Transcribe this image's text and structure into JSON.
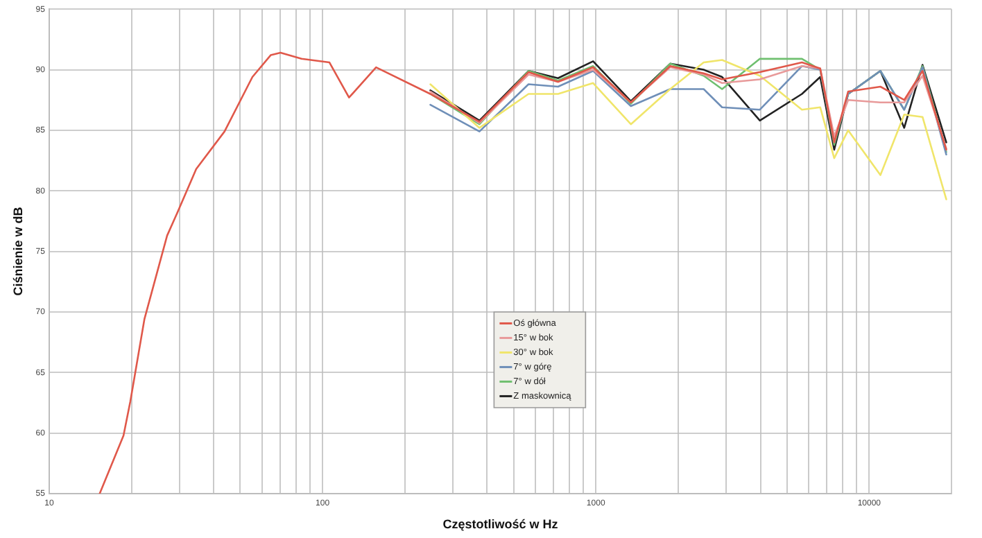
{
  "chart_data": {
    "type": "line",
    "xlabel": "Częstotliwość w Hz",
    "ylabel": "Ciśnienie w dB",
    "log": "x",
    "grid": true,
    "legend": "bottom",
    "marker": "none",
    "line_style": "solid",
    "xlim": [
      10,
      20000
    ],
    "xticks": [
      10,
      100,
      1000,
      10000
    ],
    "ylim": [
      55,
      95
    ],
    "yticks": [
      55,
      60,
      65,
      70,
      75,
      80,
      85,
      90,
      95
    ],
    "series": [
      {
        "name": "Oś główna",
        "color": "#e0584a",
        "x": [
          15.3,
          18.7,
          19.8,
          22.3,
          27,
          29.3,
          34.5,
          43.8,
          55.4,
          64.6,
          70.2,
          83.8,
          106,
          125,
          157,
          248,
          375,
          567,
          727,
          977,
          1343,
          1870,
          2480,
          2896,
          3981,
          5675,
          6618,
          7447,
          8375,
          10990,
          13430,
          15670,
          19140
        ],
        "values": [
          55,
          59.8,
          62.6,
          69.4,
          76.3,
          78.1,
          81.8,
          84.9,
          89.4,
          91.2,
          91.4,
          90.9,
          90.6,
          87.7,
          90.2,
          88,
          85.7,
          89.8,
          89,
          90.2,
          87.3,
          90.3,
          89.7,
          89.2,
          89.8,
          90.6,
          90.1,
          84,
          88.2,
          88.6,
          87.5,
          89.9,
          83.4
        ]
      },
      {
        "name": "15° w bok",
        "color": "#e89a9a",
        "x": [
          248,
          375,
          567,
          727,
          977,
          1343,
          1870,
          2480,
          2896,
          3981,
          5675,
          6618,
          7447,
          8375,
          10990,
          13430,
          15670,
          19140
        ],
        "values": [
          88.2,
          85.6,
          89.6,
          89,
          90,
          87.3,
          90.2,
          89.6,
          88.9,
          89.2,
          90.3,
          90.1,
          84.5,
          87.5,
          87.3,
          87.3,
          89.5,
          83.5
        ]
      },
      {
        "name": "30° w bok",
        "color": "#f0e56a",
        "x": [
          248,
          375,
          567,
          727,
          977,
          1343,
          1870,
          2480,
          2896,
          3981,
          5675,
          6618,
          7447,
          8375,
          10990,
          13430,
          15670,
          19140
        ],
        "values": [
          88.8,
          85.2,
          88,
          88,
          88.9,
          85.5,
          88.4,
          90.6,
          90.8,
          89.5,
          86.7,
          86.9,
          82.7,
          85,
          81.3,
          86.3,
          86.1,
          79.3
        ]
      },
      {
        "name": "7° w górę",
        "color": "#6f8fb8",
        "x": [
          248,
          375,
          567,
          727,
          977,
          1343,
          1870,
          2480,
          2896,
          3981,
          5675,
          6618,
          7447,
          8375,
          10990,
          13430,
          15670,
          19140
        ],
        "values": [
          87.1,
          84.9,
          88.8,
          88.6,
          89.9,
          87,
          88.4,
          88.4,
          86.9,
          86.7,
          90.3,
          90,
          84,
          88,
          89.9,
          86.7,
          90.2,
          83
        ]
      },
      {
        "name": "7° w dół",
        "color": "#6fbf6f",
        "x": [
          248,
          375,
          567,
          727,
          977,
          1343,
          1870,
          2480,
          2896,
          3981,
          5675,
          6618,
          7447,
          8375,
          10990,
          13430,
          15670,
          19140
        ],
        "values": [
          88,
          85.5,
          89.9,
          89.1,
          90.3,
          87.2,
          90.5,
          89.5,
          88.4,
          90.9,
          90.9,
          90,
          83.8,
          88,
          89.9,
          86.7,
          90.3,
          83.2
        ]
      },
      {
        "name": "Z maskownicą",
        "color": "#222222",
        "x": [
          248,
          375,
          567,
          727,
          977,
          1343,
          1870,
          2480,
          2896,
          3981,
          5675,
          6618,
          7447,
          8375,
          10990,
          13430,
          15670,
          19140
        ],
        "values": [
          88.3,
          85.8,
          89.9,
          89.3,
          90.7,
          87.4,
          90.5,
          90,
          89.4,
          85.8,
          88,
          89.4,
          83.4,
          88,
          89.9,
          85.2,
          90.4,
          84
        ]
      }
    ]
  }
}
